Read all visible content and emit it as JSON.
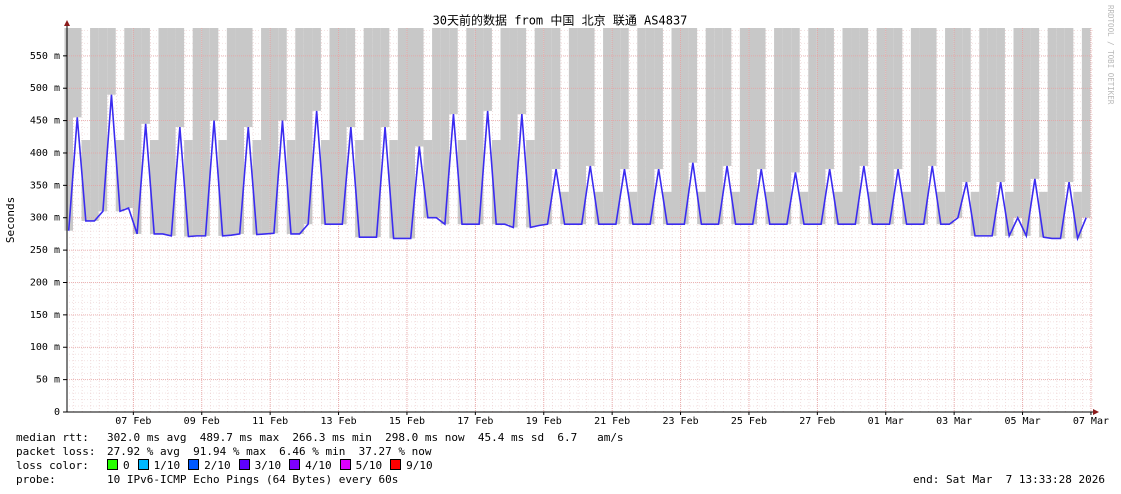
{
  "chart_data": {
    "type": "line",
    "title": "30天前的数据 from 中国 北京 联通 AS4837",
    "y_label": "Seconds",
    "watermark": "RRDTOOL / TOBI OETIKER",
    "xlim": [
      0,
      30
    ],
    "xticks": [
      {
        "value": 1.94,
        "label": "07 Feb"
      },
      {
        "value": 3.94,
        "label": "09 Feb"
      },
      {
        "value": 5.94,
        "label": "11 Feb"
      },
      {
        "value": 7.94,
        "label": "13 Feb"
      },
      {
        "value": 9.94,
        "label": "15 Feb"
      },
      {
        "value": 11.94,
        "label": "17 Feb"
      },
      {
        "value": 13.94,
        "label": "19 Feb"
      },
      {
        "value": 15.94,
        "label": "21 Feb"
      },
      {
        "value": 17.94,
        "label": "23 Feb"
      },
      {
        "value": 19.94,
        "label": "25 Feb"
      },
      {
        "value": 21.94,
        "label": "27 Feb"
      },
      {
        "value": 23.94,
        "label": "01 Mar"
      },
      {
        "value": 25.94,
        "label": "03 Mar"
      },
      {
        "value": 27.94,
        "label": "05 Mar"
      },
      {
        "value": 29.94,
        "label": "07 Mar"
      }
    ],
    "ylim": [
      0,
      0.593
    ],
    "yticks": [
      0,
      {
        "value": 0.05,
        "label": "50 m"
      },
      {
        "value": 0.1,
        "label": "100 m"
      },
      {
        "value": 0.15,
        "label": "150 m"
      },
      {
        "value": 0.2,
        "label": "200 m"
      },
      {
        "value": 0.25,
        "label": "250 m"
      },
      {
        "value": 0.3,
        "label": "300 m"
      },
      {
        "value": 0.35,
        "label": "350 m"
      },
      {
        "value": 0.4,
        "label": "400 m"
      },
      {
        "value": 0.45,
        "label": "450 m"
      },
      {
        "value": 0.5,
        "label": "500 m"
      },
      {
        "value": 0.55,
        "label": "550 m"
      }
    ],
    "grid": true,
    "grid_color": "#e8a0a0",
    "smoke_color": "#c8c8c8",
    "x": [
      0.05,
      0.3,
      0.55,
      0.8,
      1.05,
      1.3,
      1.55,
      1.8,
      2.05,
      2.3,
      2.55,
      2.8,
      3.05,
      3.3,
      3.55,
      3.8,
      4.05,
      4.3,
      4.55,
      4.8,
      5.05,
      5.3,
      5.55,
      5.8,
      6.05,
      6.3,
      6.55,
      6.8,
      7.05,
      7.3,
      7.55,
      7.8,
      8.05,
      8.3,
      8.55,
      8.8,
      9.05,
      9.3,
      9.55,
      9.8,
      10.05,
      10.3,
      10.55,
      10.8,
      11.05,
      11.3,
      11.55,
      11.8,
      12.05,
      12.3,
      12.55,
      12.8,
      13.05,
      13.3,
      13.55,
      13.8,
      14.05,
      14.3,
      14.55,
      14.8,
      15.05,
      15.3,
      15.55,
      15.8,
      16.05,
      16.3,
      16.55,
      16.8,
      17.05,
      17.3,
      17.55,
      17.8,
      18.05,
      18.3,
      18.55,
      18.8,
      19.05,
      19.3,
      19.55,
      19.8,
      20.05,
      20.3,
      20.55,
      20.8,
      21.05,
      21.3,
      21.55,
      21.8,
      22.05,
      22.3,
      22.55,
      22.8,
      23.05,
      23.3,
      23.55,
      23.8,
      24.05,
      24.3,
      24.55,
      24.8,
      25.05,
      25.3,
      25.55,
      25.8,
      26.05,
      26.3,
      26.55,
      26.8,
      27.05,
      27.3,
      27.55,
      27.8,
      28.05,
      28.3,
      28.55,
      28.8,
      29.05,
      29.3,
      29.55,
      29.8
    ],
    "series": [
      {
        "name": "median rtt",
        "color": "#3b2cf0",
        "values": [
          0.28,
          0.455,
          0.295,
          0.295,
          0.31,
          0.49,
          0.31,
          0.315,
          0.275,
          0.445,
          0.275,
          0.275,
          0.272,
          0.44,
          0.271,
          0.272,
          0.272,
          0.45,
          0.272,
          0.273,
          0.275,
          0.44,
          0.274,
          0.275,
          0.276,
          0.45,
          0.275,
          0.275,
          0.29,
          0.465,
          0.29,
          0.29,
          0.29,
          0.44,
          0.27,
          0.27,
          0.27,
          0.44,
          0.268,
          0.268,
          0.268,
          0.41,
          0.3,
          0.3,
          0.29,
          0.46,
          0.29,
          0.29,
          0.29,
          0.465,
          0.29,
          0.29,
          0.285,
          0.46,
          0.285,
          0.288,
          0.29,
          0.375,
          0.29,
          0.29,
          0.29,
          0.38,
          0.29,
          0.29,
          0.29,
          0.375,
          0.29,
          0.29,
          0.29,
          0.375,
          0.29,
          0.29,
          0.29,
          0.385,
          0.29,
          0.29,
          0.29,
          0.38,
          0.29,
          0.29,
          0.29,
          0.375,
          0.29,
          0.29,
          0.29,
          0.37,
          0.29,
          0.29,
          0.29,
          0.375,
          0.29,
          0.29,
          0.29,
          0.38,
          0.29,
          0.29,
          0.29,
          0.375,
          0.29,
          0.29,
          0.29,
          0.38,
          0.29,
          0.29,
          0.3,
          0.355,
          0.272,
          0.272,
          0.272,
          0.355,
          0.272,
          0.3,
          0.272,
          0.36,
          0.27,
          0.268,
          0.268,
          0.355,
          0.268,
          0.3
        ]
      },
      {
        "name": "smoke",
        "color": "#c8c8c8",
        "values": [
          0.593,
          0.593,
          0.42,
          0.593,
          0.593,
          0.593,
          0.42,
          0.593,
          0.593,
          0.593,
          0.42,
          0.593,
          0.593,
          0.593,
          0.42,
          0.593,
          0.593,
          0.593,
          0.42,
          0.593,
          0.593,
          0.593,
          0.42,
          0.593,
          0.593,
          0.593,
          0.42,
          0.593,
          0.593,
          0.593,
          0.42,
          0.593,
          0.593,
          0.593,
          0.42,
          0.593,
          0.593,
          0.593,
          0.42,
          0.593,
          0.593,
          0.593,
          0.42,
          0.593,
          0.593,
          0.593,
          0.42,
          0.593,
          0.593,
          0.593,
          0.42,
          0.593,
          0.593,
          0.593,
          0.42,
          0.593,
          0.593,
          0.593,
          0.34,
          0.593,
          0.593,
          0.593,
          0.34,
          0.593,
          0.593,
          0.593,
          0.34,
          0.593,
          0.593,
          0.593,
          0.34,
          0.593,
          0.593,
          0.593,
          0.34,
          0.593,
          0.593,
          0.593,
          0.34,
          0.593,
          0.593,
          0.593,
          0.34,
          0.593,
          0.593,
          0.593,
          0.34,
          0.593,
          0.593,
          0.593,
          0.34,
          0.593,
          0.593,
          0.593,
          0.34,
          0.593,
          0.593,
          0.593,
          0.34,
          0.593,
          0.593,
          0.593,
          0.34,
          0.593,
          0.593,
          0.593,
          0.34,
          0.593,
          0.593,
          0.593,
          0.34,
          0.593,
          0.593,
          0.593,
          0.34,
          0.593,
          0.593,
          0.593,
          0.34,
          0.593
        ]
      }
    ]
  },
  "footer": {
    "median_rtt": {
      "label": "median rtt:",
      "text": "302.0 ms avg  489.7 ms max  266.3 ms min  298.0 ms now  45.4 ms sd  6.7   am/s"
    },
    "packet_loss": {
      "label": "packet loss:",
      "text": "27.92 % avg  91.94 % max  6.46 % min  37.27 % now"
    },
    "loss_color": {
      "label": "loss color:",
      "entries": [
        {
          "label": "0",
          "color": "#26ff00"
        },
        {
          "label": "1/10",
          "color": "#00b8ff"
        },
        {
          "label": "2/10",
          "color": "#0059ff"
        },
        {
          "label": "3/10",
          "color": "#5e00ff"
        },
        {
          "label": "4/10",
          "color": "#7e00ff"
        },
        {
          "label": "5/10",
          "color": "#dd00ff"
        },
        {
          "label": "9/10",
          "color": "#ff0000"
        }
      ]
    },
    "probe": {
      "label": "probe:",
      "text": "10 IPv6-ICMP Echo Pings (64 Bytes) every 60s"
    },
    "end": "end: Sat Mar  7 13:33:28 2026"
  }
}
